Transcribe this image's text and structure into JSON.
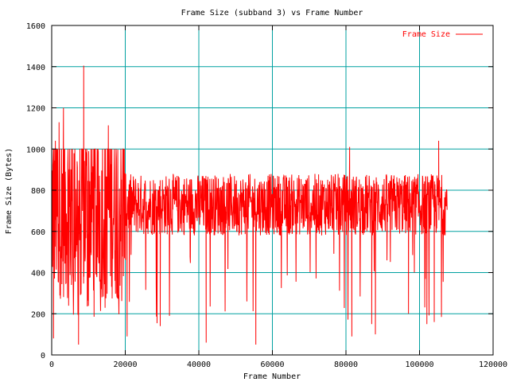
{
  "chart_data": {
    "type": "line",
    "title": "Frame Size (subband 3) vs Frame Number",
    "xlabel": "Frame Number",
    "ylabel": "Frame Size (Bytes)",
    "xlim": [
      0,
      120000
    ],
    "ylim": [
      0,
      1600
    ],
    "xticks": [
      0,
      20000,
      40000,
      60000,
      80000,
      100000,
      120000
    ],
    "yticks": [
      0,
      200,
      400,
      600,
      800,
      1000,
      1200,
      1400,
      1600
    ],
    "grid": true,
    "legend_position": "top-right",
    "series": [
      {
        "name": "Frame Size",
        "color": "#ff0000",
        "x_max": 107500,
        "typical_range": [
          550,
          950
        ],
        "approx_mean": 730,
        "peaks": [
          {
            "x": 500,
            "y": 80
          },
          {
            "x": 1000,
            "y": 1040
          },
          {
            "x": 2000,
            "y": 1130
          },
          {
            "x": 3200,
            "y": 1200
          },
          {
            "x": 7300,
            "y": 50
          },
          {
            "x": 8700,
            "y": 1405
          },
          {
            "x": 15400,
            "y": 1115
          },
          {
            "x": 20500,
            "y": 90
          },
          {
            "x": 29500,
            "y": 140
          },
          {
            "x": 42000,
            "y": 60
          },
          {
            "x": 55500,
            "y": 50
          },
          {
            "x": 81000,
            "y": 1010
          },
          {
            "x": 81600,
            "y": 90
          },
          {
            "x": 87000,
            "y": 150
          },
          {
            "x": 88000,
            "y": 100
          },
          {
            "x": 97000,
            "y": 200
          },
          {
            "x": 102000,
            "y": 150
          },
          {
            "x": 104000,
            "y": 160
          },
          {
            "x": 105200,
            "y": 1040
          }
        ]
      }
    ]
  }
}
